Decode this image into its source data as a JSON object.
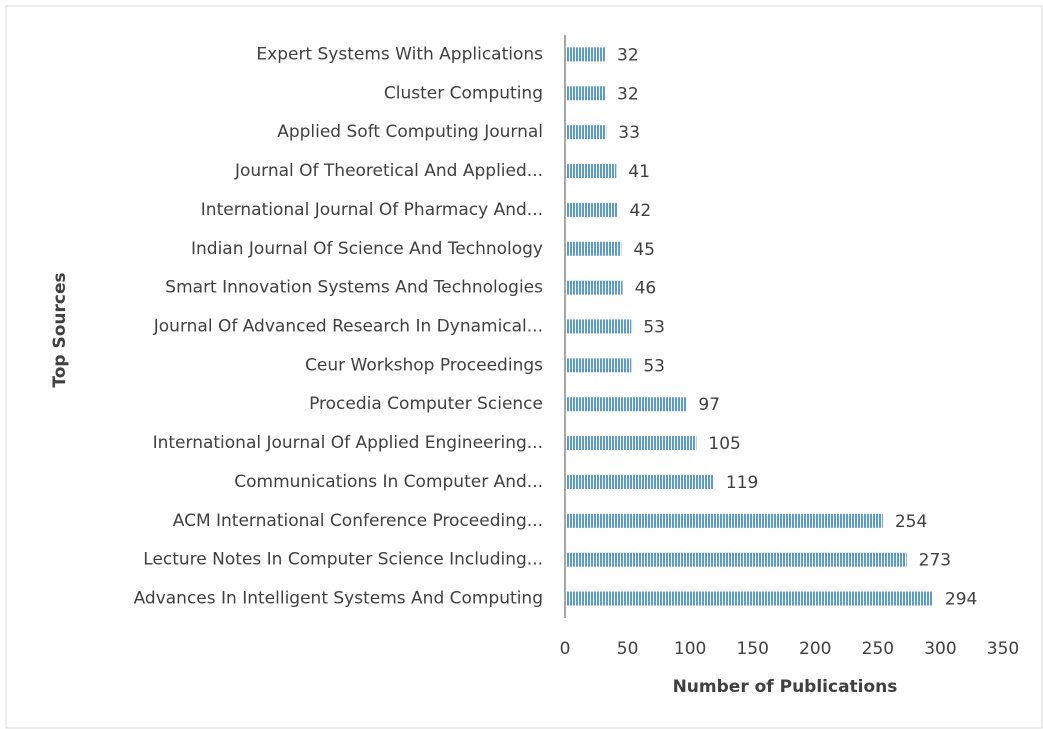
{
  "chart_data": {
    "type": "bar",
    "orientation": "horizontal",
    "x_label": "Number of Publications",
    "y_label": "Top Sources",
    "categories": [
      "Expert Systems With Applications",
      "Cluster Computing",
      "Applied Soft Computing Journal",
      "Journal Of Theoretical And Applied...",
      "International Journal Of Pharmacy And...",
      "Indian Journal Of Science And Technology",
      "Smart Innovation Systems And Technologies",
      "Journal Of Advanced Research In Dynamical...",
      "Ceur Workshop Proceedings",
      "Procedia Computer Science",
      "International Journal Of Applied Engineering...",
      "Communications In Computer And...",
      "ACM International Conference Proceeding...",
      "Lecture Notes In Computer Science Including...",
      "Advances In Intelligent Systems And Computing"
    ],
    "values": [
      32,
      32,
      33,
      41,
      42,
      45,
      46,
      53,
      53,
      97,
      105,
      119,
      254,
      273,
      294
    ],
    "color": "#5b9bd5",
    "xlim": [
      0,
      350
    ],
    "xticks": [
      0,
      50,
      100,
      150,
      200,
      250,
      300,
      350
    ],
    "grid": false
  }
}
